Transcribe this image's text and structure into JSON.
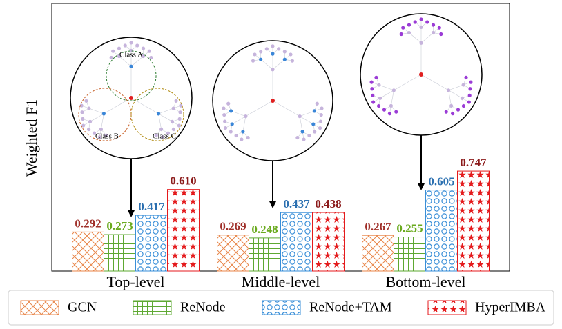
{
  "chart_data": {
    "type": "bar",
    "y_label": "Weighted F1",
    "categories": [
      "Top-level",
      "Middle-level",
      "Bottom-level"
    ],
    "ylim": [
      0,
      2
    ],
    "series": [
      {
        "name": "GCN",
        "color": "#e8864a",
        "label_color": "#a0302a",
        "hatch": "x",
        "values": [
          0.292,
          0.269,
          0.267
        ],
        "value_labels": [
          "0.292",
          "0.269",
          "0.267"
        ]
      },
      {
        "name": "ReNode",
        "color": "#5ea832",
        "label_color": "#6aaa1e",
        "hatch": "+",
        "values": [
          0.273,
          0.248,
          0.255
        ],
        "value_labels": [
          "0.273",
          "0.248",
          "0.255"
        ]
      },
      {
        "name": "ReNode+TAM",
        "color": "#3a8fd8",
        "label_color": "#2a6fb0",
        "hatch": "o",
        "values": [
          0.417,
          0.437,
          0.605
        ],
        "value_labels": [
          "0.417",
          "0.437",
          "0.605"
        ]
      },
      {
        "name": "HyperIMBA",
        "color": "#e41a1c",
        "label_color": "#8b1a1a",
        "hatch": "*",
        "values": [
          0.61,
          0.438,
          0.747
        ],
        "value_labels": [
          "0.610",
          "0.438",
          "0.747"
        ]
      }
    ],
    "annotations": [
      "Class A",
      "Class B",
      "Class C"
    ]
  }
}
